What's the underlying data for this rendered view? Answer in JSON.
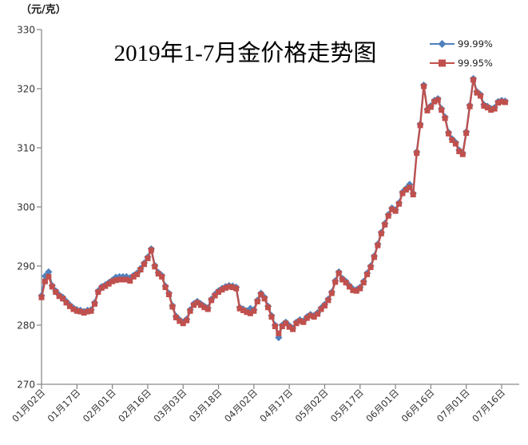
{
  "y_axis_unit_label": "（元/克）",
  "legend": {
    "items": [
      {
        "label": "99.99%",
        "color": "#4F81BD",
        "marker": "diamond"
      },
      {
        "label": "99.95%",
        "color": "#C0504D",
        "marker": "square"
      }
    ]
  },
  "chart_data": {
    "type": "line",
    "title": "2019年1-7月金价格走势图",
    "xlabel": "",
    "ylabel": "（元/克）",
    "ylim": [
      270,
      330
    ],
    "y_ticks": [
      270,
      280,
      290,
      300,
      310,
      320,
      330
    ],
    "grid": false,
    "legend_position": "top-right",
    "x_tick_labels": [
      "01月02日",
      "01月17日",
      "02月01日",
      "02月16日",
      "03月03日",
      "03月18日",
      "04月02日",
      "04月17日",
      "05月02日",
      "05月17日",
      "06月01日",
      "06月16日",
      "07月01日",
      "07月16日"
    ],
    "x_tick_interval_points": 10,
    "axis_color": "#8c8c8c",
    "series": [
      {
        "name": "99.99%",
        "color": "#4F81BD",
        "marker": "diamond",
        "values": [
          285.0,
          288.3,
          289.0,
          286.7,
          285.8,
          285.1,
          284.7,
          284.0,
          283.4,
          282.9,
          282.6,
          282.5,
          282.3,
          282.5,
          282.6,
          283.8,
          285.8,
          286.5,
          286.8,
          287.2,
          287.6,
          288.1,
          288.2,
          288.2,
          288.2,
          288.0,
          288.4,
          288.8,
          289.6,
          290.5,
          291.5,
          292.9,
          290.1,
          288.9,
          288.4,
          286.6,
          285.4,
          283.3,
          281.5,
          280.9,
          280.5,
          281.0,
          282.6,
          283.6,
          284.0,
          283.6,
          283.2,
          282.9,
          284.4,
          285.2,
          285.8,
          286.2,
          286.5,
          286.7,
          286.6,
          286.4,
          283.0,
          282.7,
          282.4,
          282.8,
          282.6,
          284.2,
          285.4,
          284.7,
          283.2,
          281.6,
          280.0,
          277.9,
          280.0,
          280.5,
          279.9,
          279.5,
          280.5,
          280.9,
          280.7,
          281.4,
          281.8,
          281.6,
          282.1,
          282.9,
          283.5,
          284.4,
          285.6,
          287.5,
          289.0,
          287.9,
          287.4,
          286.7,
          286.1,
          286.0,
          286.4,
          287.4,
          288.8,
          290.0,
          291.7,
          293.7,
          295.7,
          297.2,
          298.7,
          299.8,
          299.5,
          300.7,
          302.5,
          303.1,
          303.8,
          302.3,
          309.3,
          314.0,
          320.6,
          316.5,
          317.1,
          318.0,
          318.3,
          316.6,
          315.2,
          312.6,
          311.5,
          310.9,
          309.6,
          309.1,
          312.7,
          317.2,
          321.7,
          319.5,
          319.0,
          317.3,
          317.0,
          316.6,
          316.8,
          317.8,
          318.0,
          317.9
        ]
      },
      {
        "name": "99.95%",
        "color": "#C0504D",
        "marker": "square",
        "values": [
          284.7,
          287.4,
          288.2,
          286.5,
          285.6,
          284.9,
          284.5,
          283.8,
          283.2,
          282.7,
          282.4,
          282.3,
          282.1,
          282.3,
          282.4,
          283.6,
          285.6,
          286.3,
          286.6,
          287.0,
          287.4,
          287.6,
          287.7,
          287.7,
          287.7,
          287.5,
          288.2,
          288.6,
          289.4,
          290.3,
          291.3,
          292.7,
          289.9,
          288.7,
          288.2,
          286.4,
          285.2,
          283.1,
          281.3,
          280.7,
          280.3,
          280.8,
          282.4,
          283.4,
          283.8,
          283.4,
          283.0,
          282.7,
          284.2,
          285.0,
          285.6,
          286.0,
          286.3,
          286.5,
          286.4,
          286.2,
          282.8,
          282.5,
          282.2,
          282.0,
          282.4,
          284.0,
          285.2,
          284.5,
          283.0,
          281.4,
          279.8,
          278.6,
          279.8,
          280.3,
          279.7,
          279.3,
          280.3,
          280.7,
          280.5,
          281.2,
          281.6,
          281.4,
          281.9,
          282.7,
          283.3,
          284.2,
          285.4,
          287.3,
          288.8,
          287.7,
          287.2,
          286.5,
          285.9,
          285.8,
          286.2,
          287.2,
          288.6,
          289.8,
          291.5,
          293.5,
          295.5,
          297.0,
          298.5,
          299.6,
          299.3,
          300.5,
          302.3,
          302.9,
          303.3,
          302.1,
          309.1,
          313.8,
          320.4,
          316.3,
          316.9,
          317.8,
          318.1,
          316.4,
          315.0,
          312.4,
          311.3,
          310.7,
          309.4,
          308.9,
          312.5,
          317.0,
          321.5,
          319.3,
          318.8,
          317.1,
          316.8,
          316.4,
          316.6,
          317.6,
          317.8,
          317.7
        ]
      }
    ]
  }
}
